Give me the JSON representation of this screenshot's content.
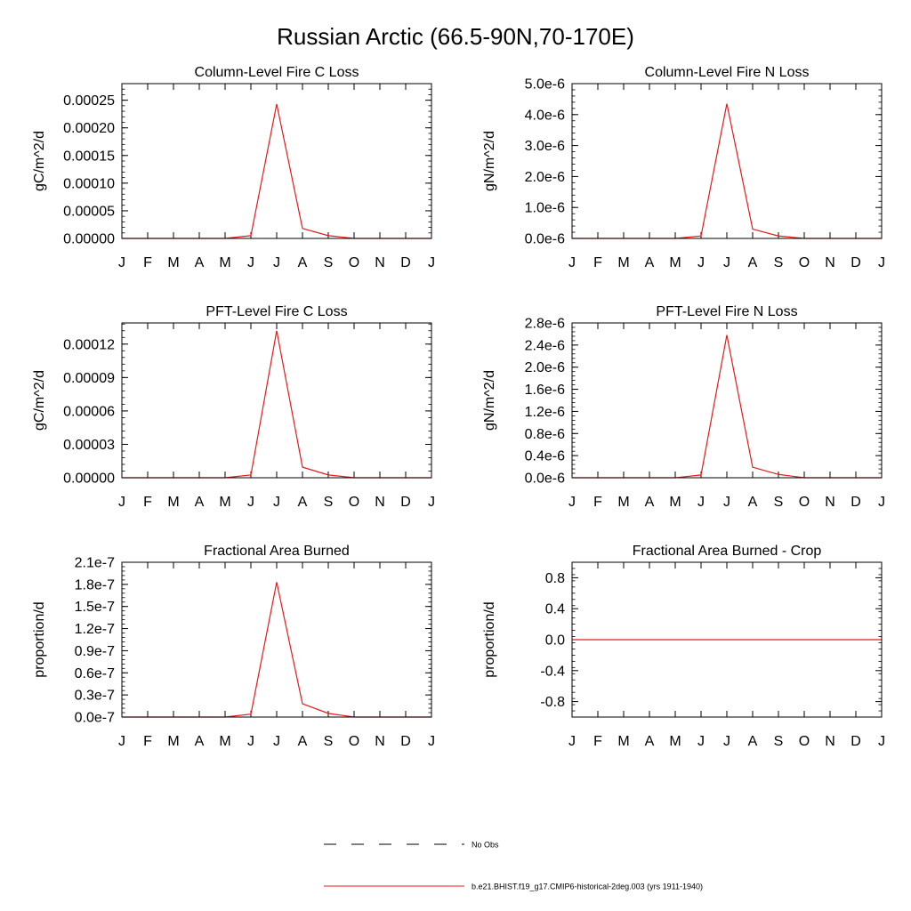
{
  "page": {
    "title": "Russian Arctic (66.5-90N,70-170E)"
  },
  "legend": {
    "placement": "bottom-center",
    "entries": [
      {
        "label": "No Obs",
        "style": "dashed",
        "color": "#000000"
      },
      {
        "label": "b.e21.BHIST.f19_g17.CMIP6-historical-2deg.003 (yrs 1911-1940)",
        "style": "solid",
        "color": "#e41a1c"
      }
    ]
  },
  "chart_data": [
    {
      "type": "line",
      "title": "Column-Level Fire C Loss",
      "ylabel": "gC/m^2/d",
      "categories": [
        "J",
        "F",
        "M",
        "A",
        "M",
        "J",
        "J",
        "A",
        "S",
        "O",
        "N",
        "D",
        "J"
      ],
      "ylim": [
        0,
        0.00028
      ],
      "yticks": [
        0,
        5e-05,
        0.0001,
        0.00015,
        0.0002,
        0.00025
      ],
      "ytick_labels": [
        "0.00000",
        "0.00005",
        "0.00010",
        "0.00015",
        "0.00020",
        "0.00025"
      ],
      "series": [
        {
          "color": "#e41a1c",
          "values": [
            0,
            0,
            0,
            0,
            0,
            5e-06,
            0.000243,
            1.8e-05,
            5e-06,
            0,
            0,
            0,
            0
          ]
        }
      ]
    },
    {
      "type": "line",
      "title": "Column-Level Fire N Loss",
      "ylabel": "gN/m^2/d",
      "categories": [
        "J",
        "F",
        "M",
        "A",
        "M",
        "J",
        "J",
        "A",
        "S",
        "O",
        "N",
        "D",
        "J"
      ],
      "ylim": [
        0,
        5e-06
      ],
      "yticks": [
        0,
        1e-06,
        2e-06,
        3e-06,
        4e-06,
        5e-06
      ],
      "ytick_labels": [
        "0.0e-6",
        "1.0e-6",
        "2.0e-6",
        "3.0e-6",
        "4.0e-6",
        "5.0e-6"
      ],
      "series": [
        {
          "color": "#e41a1c",
          "values": [
            0,
            0,
            0,
            0,
            0,
            8e-08,
            4.35e-06,
            3e-07,
            8e-08,
            0,
            0,
            0,
            0
          ]
        }
      ]
    },
    {
      "type": "line",
      "title": "PFT-Level Fire C Loss",
      "ylabel": "gC/m^2/d",
      "categories": [
        "J",
        "F",
        "M",
        "A",
        "M",
        "J",
        "J",
        "A",
        "S",
        "O",
        "N",
        "D",
        "J"
      ],
      "ylim": [
        0,
        0.000139
      ],
      "yticks": [
        0,
        3e-05,
        6e-05,
        9e-05,
        0.00012
      ],
      "ytick_labels": [
        "0.00000",
        "0.00003",
        "0.00006",
        "0.00009",
        "0.00012"
      ],
      "series": [
        {
          "color": "#e41a1c",
          "values": [
            0,
            0,
            0,
            0,
            0,
            2.5e-06,
            0.000132,
            9.5e-06,
            2.5e-06,
            0,
            0,
            0,
            0
          ]
        }
      ]
    },
    {
      "type": "line",
      "title": "PFT-Level Fire N Loss",
      "ylabel": "gN/m^2/d",
      "categories": [
        "J",
        "F",
        "M",
        "A",
        "M",
        "J",
        "J",
        "A",
        "S",
        "O",
        "N",
        "D",
        "J"
      ],
      "ylim": [
        0,
        2.8e-06
      ],
      "yticks": [
        0,
        4e-07,
        8e-07,
        1.2e-06,
        1.6e-06,
        2e-06,
        2.4e-06,
        2.8e-06
      ],
      "ytick_labels": [
        "0.0e-6",
        "0.4e-6",
        "0.8e-6",
        "1.2e-6",
        "1.6e-6",
        "2.0e-6",
        "2.4e-6",
        "2.8e-6"
      ],
      "series": [
        {
          "color": "#e41a1c",
          "values": [
            0,
            0,
            0,
            0,
            0,
            5e-08,
            2.58e-06,
            1.9e-07,
            6e-08,
            0,
            0,
            0,
            0
          ]
        }
      ]
    },
    {
      "type": "line",
      "title": "Fractional Area Burned",
      "ylabel": "proportion/d",
      "categories": [
        "J",
        "F",
        "M",
        "A",
        "M",
        "J",
        "J",
        "A",
        "S",
        "O",
        "N",
        "D",
        "J"
      ],
      "ylim": [
        0,
        2.1e-07
      ],
      "yticks": [
        0,
        3e-08,
        6e-08,
        9e-08,
        1.2e-07,
        1.5e-07,
        1.8e-07,
        2.1e-07
      ],
      "ytick_labels": [
        "0.0e-7",
        "0.3e-7",
        "0.6e-7",
        "0.9e-7",
        "1.2e-7",
        "1.5e-7",
        "1.8e-7",
        "2.1e-7"
      ],
      "series": [
        {
          "color": "#e41a1c",
          "values": [
            0,
            0,
            0,
            0,
            0,
            4e-09,
            1.83e-07,
            1.8e-08,
            5e-09,
            0,
            0,
            0,
            0
          ]
        }
      ]
    },
    {
      "type": "line",
      "title": "Fractional Area Burned - Crop",
      "ylabel": "proportion/d",
      "categories": [
        "J",
        "F",
        "M",
        "A",
        "M",
        "J",
        "J",
        "A",
        "S",
        "O",
        "N",
        "D",
        "J"
      ],
      "ylim": [
        -1,
        1
      ],
      "yticks": [
        -0.8,
        -0.4,
        0,
        0.4,
        0.8
      ],
      "ytick_labels": [
        "-0.8",
        "-0.4",
        "0.0",
        "0.4",
        "0.8"
      ],
      "series": [
        {
          "color": "#e41a1c",
          "values": [
            0,
            0,
            0,
            0,
            0,
            0,
            0,
            0,
            0,
            0,
            0,
            0,
            0
          ]
        }
      ]
    }
  ]
}
